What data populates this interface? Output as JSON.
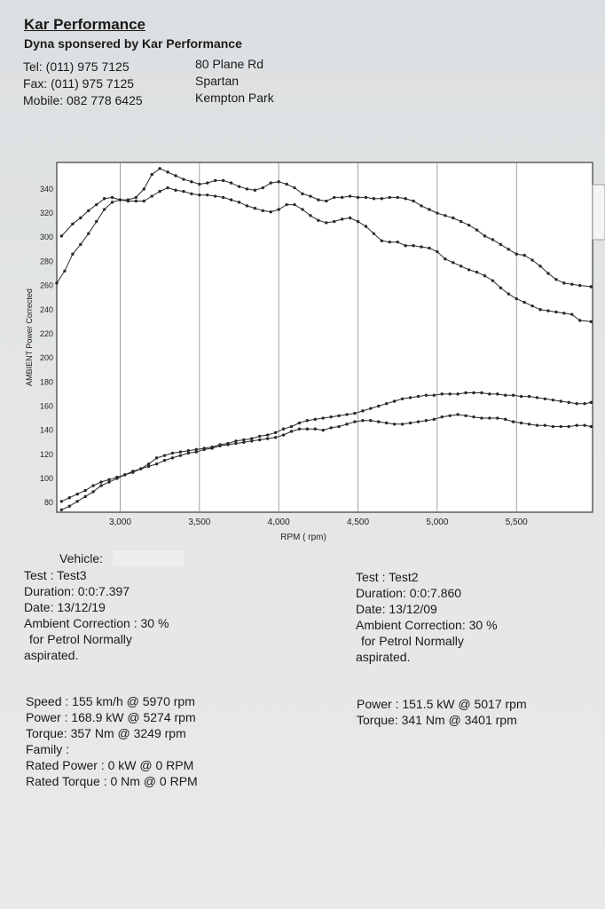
{
  "header": {
    "company": "Kar Performance",
    "sponsor": "Dyna sponsered by Kar Performance",
    "contact_left": [
      "Tel: (011) 975 7125",
      "Fax: (011) 975 7125",
      "Mobile: 082 778 6425"
    ],
    "contact_right": [
      "80 Plane Rd",
      "Spartan",
      "Kempton Park"
    ]
  },
  "chart_data": {
    "type": "line",
    "xlabel": "RPM ( rpm)",
    "ylabel": "AMBIENT Power Corrected",
    "xlim": [
      2600,
      5980
    ],
    "ylim": [
      72,
      362
    ],
    "xticks": [
      3000,
      3500,
      4000,
      4500,
      5000,
      5500
    ],
    "xtick_labels": [
      "3,000",
      "3,500",
      "4,000",
      "4,500",
      "5,000",
      "5,500"
    ],
    "yticks": [
      80,
      100,
      120,
      140,
      160,
      180,
      200,
      220,
      240,
      260,
      280,
      300,
      320,
      340
    ],
    "grid": true,
    "legend": "none",
    "line_color": "#2a2a2a",
    "grid_color": "#8a8a8a",
    "series": [
      {
        "x": [
          2630,
          2700,
          2750,
          2800,
          2850,
          2900,
          2950,
          3000,
          3050,
          3100,
          3150,
          3200,
          3250,
          3300,
          3350,
          3400,
          3450,
          3500,
          3550,
          3600,
          3650,
          3700,
          3750,
          3800,
          3850,
          3900,
          3950,
          4000,
          4050,
          4100,
          4150,
          4200,
          4250,
          4300,
          4350,
          4400,
          4450,
          4500,
          4550,
          4600,
          4650,
          4700,
          4750,
          4800,
          4850,
          4900,
          4950,
          5000,
          5050,
          5100,
          5150,
          5200,
          5250,
          5300,
          5350,
          5400,
          5450,
          5500,
          5550,
          5600,
          5650,
          5700,
          5750,
          5800,
          5850,
          5900,
          5970
        ],
        "values": [
          301,
          311,
          316,
          322,
          327,
          332,
          333,
          331,
          331,
          333,
          340,
          352,
          357,
          354,
          351,
          348,
          346,
          344,
          345,
          347,
          347,
          345,
          342,
          340,
          339,
          341,
          345,
          346,
          344,
          341,
          336,
          334,
          331,
          330,
          333,
          333,
          334,
          333,
          333,
          332,
          332,
          333,
          333,
          332,
          330,
          326,
          323,
          320,
          318,
          316,
          313,
          310,
          306,
          301,
          298,
          294,
          290,
          286,
          285,
          281,
          276,
          270,
          265,
          262,
          261,
          260,
          259
        ]
      },
      {
        "x": [
          2600,
          2650,
          2700,
          2750,
          2800,
          2850,
          2900,
          2950,
          3000,
          3050,
          3100,
          3150,
          3200,
          3250,
          3300,
          3350,
          3400,
          3450,
          3500,
          3550,
          3600,
          3650,
          3700,
          3750,
          3800,
          3850,
          3900,
          3950,
          4000,
          4050,
          4100,
          4150,
          4200,
          4250,
          4300,
          4350,
          4400,
          4450,
          4500,
          4550,
          4600,
          4650,
          4700,
          4750,
          4800,
          4850,
          4900,
          4950,
          5000,
          5050,
          5100,
          5150,
          5200,
          5250,
          5300,
          5350,
          5400,
          5450,
          5500,
          5550,
          5600,
          5650,
          5700,
          5750,
          5800,
          5850,
          5900,
          5970
        ],
        "values": [
          262,
          272,
          286,
          294,
          303,
          313,
          323,
          329,
          331,
          330,
          330,
          330,
          334,
          338,
          341,
          339,
          338,
          336,
          335,
          335,
          334,
          333,
          331,
          329,
          326,
          324,
          322,
          321,
          323,
          327,
          327,
          323,
          318,
          314,
          312,
          313,
          315,
          316,
          313,
          309,
          303,
          297,
          296,
          296,
          293,
          293,
          292,
          291,
          288,
          282,
          279,
          276,
          273,
          271,
          268,
          264,
          258,
          253,
          249,
          246,
          243,
          240,
          239,
          238,
          237,
          236,
          231,
          230
        ]
      },
      {
        "x": [
          2630,
          2680,
          2730,
          2780,
          2830,
          2880,
          2930,
          2980,
          3030,
          3080,
          3130,
          3180,
          3230,
          3280,
          3330,
          3380,
          3430,
          3480,
          3530,
          3580,
          3630,
          3680,
          3730,
          3780,
          3830,
          3880,
          3930,
          3980,
          4030,
          4080,
          4130,
          4180,
          4230,
          4280,
          4330,
          4380,
          4430,
          4480,
          4530,
          4580,
          4630,
          4680,
          4730,
          4780,
          4830,
          4880,
          4930,
          4980,
          5030,
          5080,
          5130,
          5180,
          5230,
          5280,
          5330,
          5380,
          5430,
          5480,
          5530,
          5580,
          5630,
          5680,
          5730,
          5780,
          5830,
          5880,
          5930,
          5970
        ],
        "values": [
          81,
          84,
          87,
          90,
          94,
          97,
          99,
          101,
          103,
          105,
          108,
          112,
          117,
          119,
          121,
          122,
          123,
          124,
          125,
          126,
          128,
          129,
          131,
          132,
          133,
          135,
          136,
          138,
          141,
          143,
          146,
          148,
          149,
          150,
          151,
          152,
          153,
          154,
          156,
          158,
          160,
          162,
          164,
          166,
          167,
          168,
          169,
          169,
          170,
          170,
          170,
          171,
          171,
          171,
          170,
          170,
          169,
          169,
          168,
          168,
          167,
          166,
          165,
          164,
          163,
          162,
          162,
          163
        ]
      },
      {
        "x": [
          2630,
          2680,
          2730,
          2780,
          2830,
          2880,
          2930,
          2980,
          3030,
          3080,
          3130,
          3180,
          3230,
          3280,
          3330,
          3380,
          3430,
          3480,
          3530,
          3580,
          3630,
          3680,
          3730,
          3780,
          3830,
          3880,
          3930,
          3980,
          4030,
          4080,
          4130,
          4180,
          4230,
          4280,
          4330,
          4380,
          4430,
          4480,
          4530,
          4580,
          4630,
          4680,
          4730,
          4780,
          4830,
          4880,
          4930,
          4980,
          5030,
          5080,
          5130,
          5180,
          5230,
          5280,
          5330,
          5380,
          5430,
          5480,
          5530,
          5580,
          5630,
          5680,
          5730,
          5780,
          5830,
          5880,
          5930,
          5970
        ],
        "values": [
          74,
          77,
          81,
          85,
          89,
          94,
          97,
          100,
          103,
          106,
          108,
          110,
          112,
          115,
          117,
          119,
          121,
          122,
          124,
          125,
          127,
          128,
          129,
          130,
          131,
          132,
          133,
          134,
          136,
          139,
          141,
          141,
          141,
          140,
          142,
          143,
          145,
          147,
          148,
          148,
          147,
          146,
          145,
          145,
          146,
          147,
          148,
          149,
          151,
          152,
          153,
          152,
          151,
          150,
          150,
          150,
          149,
          147,
          146,
          145,
          144,
          144,
          143,
          143,
          143,
          144,
          144,
          143
        ]
      }
    ]
  },
  "vehicle": {
    "label": "Vehicle:",
    "value": ""
  },
  "test_left": {
    "test": "Test    : Test3",
    "duration": "Duration: 0:0:7.397",
    "date": "Date: 13/12/19",
    "ambient": "Ambient Correction : 30 %",
    "fuel": "for Petrol Normally",
    "aspirated": "aspirated."
  },
  "test_right": {
    "test": "Test    : Test2",
    "duration": "Duration: 0:0:7.860",
    "date": "Date: 13/12/09",
    "ambient": "Ambient Correction: 30 %",
    "fuel": "for Petrol Normally",
    "aspirated": "aspirated."
  },
  "results_left": {
    "speed": "Speed : 155 km/h @ 5970 rpm",
    "power": "Power : 168.9 kW @ 5274 rpm",
    "torque": "Torque: 357 Nm @ 3249 rpm",
    "family": "Family :",
    "rated_power": "Rated Power : 0 kW @ 0 RPM",
    "rated_torque": "Rated Torque : 0 Nm @ 0 RPM"
  },
  "results_right": {
    "power": "Power : 151.5 kW @ 5017 rpm",
    "torque": "Torque: 341 Nm @ 3401 rpm"
  }
}
